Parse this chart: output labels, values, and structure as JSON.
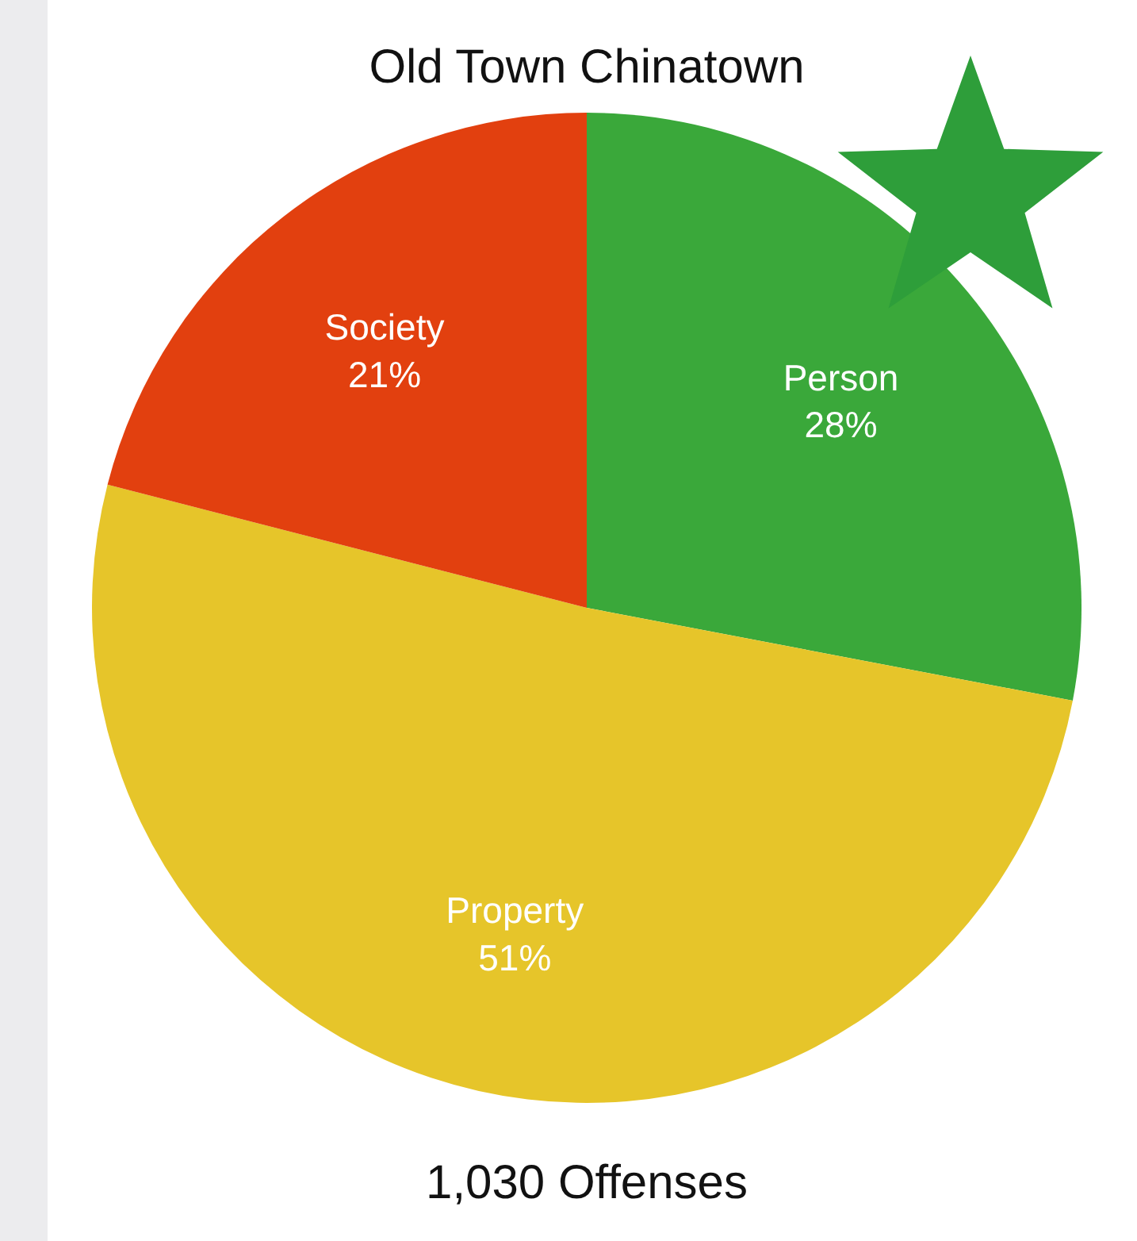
{
  "chart_data": {
    "type": "pie",
    "title": "Old Town Chinatown",
    "categories": [
      "Person",
      "Property",
      "Society"
    ],
    "values": [
      28,
      51,
      21
    ],
    "colors": [
      "#3aa83a",
      "#e6c52a",
      "#e2400f"
    ],
    "value_labels": [
      "28%",
      "51%",
      "21%"
    ],
    "annotations": [
      "1,030 Offenses"
    ]
  }
}
